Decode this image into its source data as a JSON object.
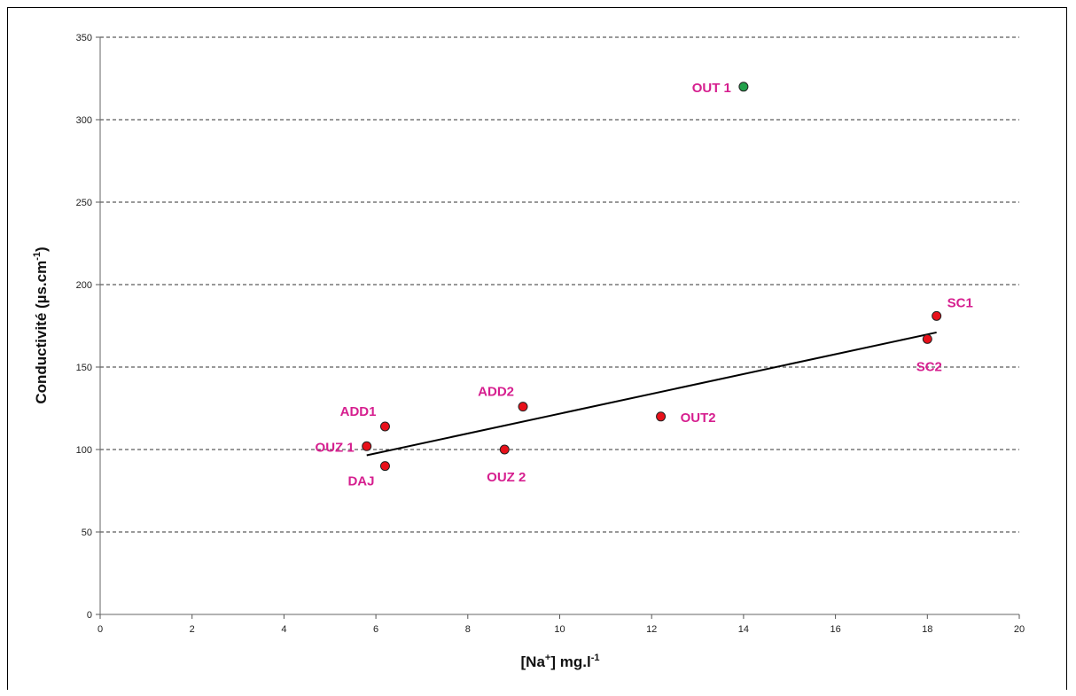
{
  "chart_data": {
    "type": "scatter",
    "xlabel": {
      "main": "[Na",
      "sup": "+",
      "mid": "] mg.l",
      "sup2": "-1"
    },
    "ylabel": {
      "main": "Conductivité  (µs.cm",
      "sup": "-1",
      "end": ")"
    },
    "xlim": [
      0,
      20
    ],
    "ylim": [
      0,
      350
    ],
    "x_ticks": [
      0,
      2,
      4,
      6,
      8,
      10,
      12,
      14,
      16,
      18,
      20
    ],
    "y_ticks": [
      0,
      50,
      100,
      150,
      200,
      250,
      300,
      350
    ],
    "grid": "horizontal dashed",
    "series": [
      {
        "color": "#e8101a",
        "points": [
          {
            "label": "OUZ 1",
            "x": 5.8,
            "y": 102,
            "label_pos": "left"
          },
          {
            "label": "ADD1",
            "x": 6.2,
            "y": 114,
            "label_pos": "upper-left"
          },
          {
            "label": "DAJ",
            "x": 6.2,
            "y": 90,
            "label_pos": "lower-left"
          },
          {
            "label": "OUZ 2",
            "x": 8.8,
            "y": 100,
            "label_pos": "lower-right"
          },
          {
            "label": "ADD2",
            "x": 9.2,
            "y": 126,
            "label_pos": "upper-left"
          },
          {
            "label": "OUT2",
            "x": 12.2,
            "y": 120,
            "label_pos": "right"
          },
          {
            "label": "SC2",
            "x": 18.0,
            "y": 167,
            "label_pos": "lower-right"
          },
          {
            "label": "SC1",
            "x": 18.2,
            "y": 181,
            "label_pos": "upper-right"
          }
        ]
      },
      {
        "color": "#22a04a",
        "points": [
          {
            "label": "OUT 1",
            "x": 14.0,
            "y": 320,
            "label_pos": "left"
          }
        ]
      }
    ],
    "trendline": {
      "x": [
        5.8,
        18.2
      ],
      "y": [
        96.5,
        171
      ]
    },
    "label_color": "#d61f8f"
  }
}
